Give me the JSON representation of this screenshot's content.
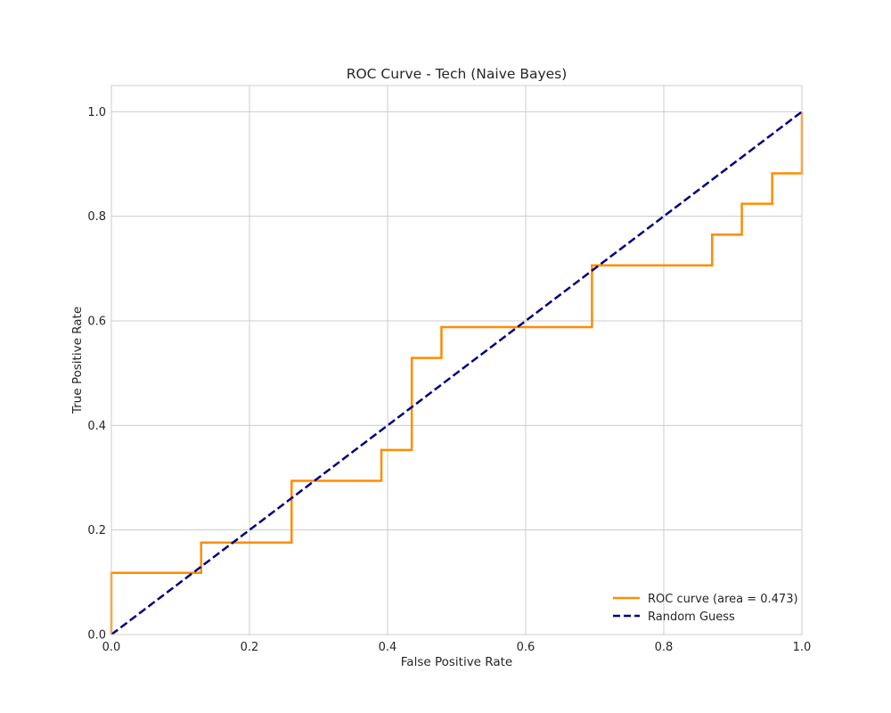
{
  "chart_data": {
    "type": "line",
    "title": "ROC Curve - Tech (Naive Bayes)",
    "xlabel": "False Positive Rate",
    "ylabel": "True Positive Rate",
    "xlim": [
      0.0,
      1.0
    ],
    "ylim": [
      0.0,
      1.05
    ],
    "xticks": [
      "0.0",
      "0.2",
      "0.4",
      "0.6",
      "0.8",
      "1.0"
    ],
    "yticks": [
      "0.0",
      "0.2",
      "0.4",
      "0.6",
      "0.8",
      "1.0"
    ],
    "grid": true,
    "legend_position": "lower-right",
    "series": [
      {
        "name": "ROC curve (area = 0.473)",
        "color": "#ff8c00",
        "style": "solid",
        "x": [
          0.0,
          0.0,
          0.13,
          0.13,
          0.261,
          0.261,
          0.391,
          0.391,
          0.435,
          0.435,
          0.478,
          0.478,
          0.696,
          0.696,
          0.87,
          0.87,
          0.913,
          0.913,
          0.957,
          0.957,
          1.0,
          1.0
        ],
        "y": [
          0.0,
          0.118,
          0.118,
          0.176,
          0.176,
          0.294,
          0.294,
          0.353,
          0.353,
          0.529,
          0.529,
          0.588,
          0.588,
          0.706,
          0.706,
          0.765,
          0.765,
          0.824,
          0.824,
          0.882,
          0.882,
          1.0
        ]
      },
      {
        "name": "Random Guess",
        "color": "#000080",
        "style": "dashed",
        "x": [
          0.0,
          1.0
        ],
        "y": [
          0.0,
          1.0
        ]
      }
    ]
  }
}
